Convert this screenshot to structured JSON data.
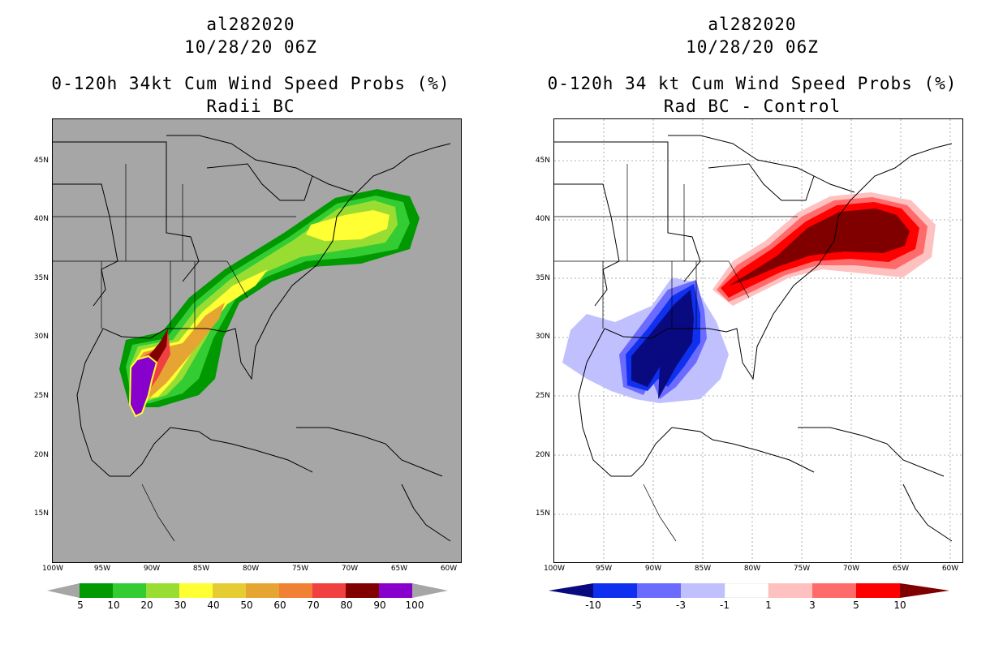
{
  "left_panel": {
    "storm_id": "al282020",
    "datetime": "10/28/20 06Z",
    "product_title": "0-120h 34kt Cum Wind Speed Probs (%)",
    "subtitle": "Radii BC",
    "background_color": "#a6a6a6",
    "colorbar": {
      "colors": [
        "#009900",
        "#33cc33",
        "#99dd33",
        "#ffff33",
        "#e6cc33",
        "#e6a533",
        "#f08033",
        "#f04040",
        "#800000",
        "#8800cc"
      ],
      "end_color": "#a6a6a6",
      "labels": [
        "5",
        "10",
        "20",
        "30",
        "40",
        "50",
        "60",
        "70",
        "80",
        "90",
        "100"
      ]
    }
  },
  "right_panel": {
    "storm_id": "al282020",
    "datetime": "10/28/20 06Z",
    "product_title": "0-120h 34 kt Cum Wind Speed Probs (%)",
    "subtitle": "Rad BC - Control",
    "background_color": "#ffffff",
    "colorbar": {
      "colors": [
        "#0a0a80",
        "#1030f0",
        "#6b6bff",
        "#c0c0ff",
        "#ffffff",
        "#ffc0c0",
        "#ff6b6b",
        "#ff0000",
        "#800000"
      ],
      "labels": [
        "-10",
        "-5",
        "-3",
        "-1",
        "1",
        "3",
        "5",
        "10"
      ]
    }
  },
  "axes": {
    "lat_labels": [
      "45N",
      "40N",
      "35N",
      "30N",
      "25N",
      "20N",
      "15N"
    ],
    "lat_values": [
      45,
      40,
      35,
      30,
      25,
      20,
      15
    ],
    "lon_labels": [
      "100W",
      "95W",
      "90W",
      "85W",
      "80W",
      "75W",
      "70W",
      "65W",
      "60W"
    ],
    "lon_values": [
      -100,
      -95,
      -90,
      -85,
      -80,
      -75,
      -70,
      -65,
      -60
    ],
    "lon_range": [
      -100,
      -59
    ],
    "lat_range": [
      11,
      48.5
    ]
  }
}
